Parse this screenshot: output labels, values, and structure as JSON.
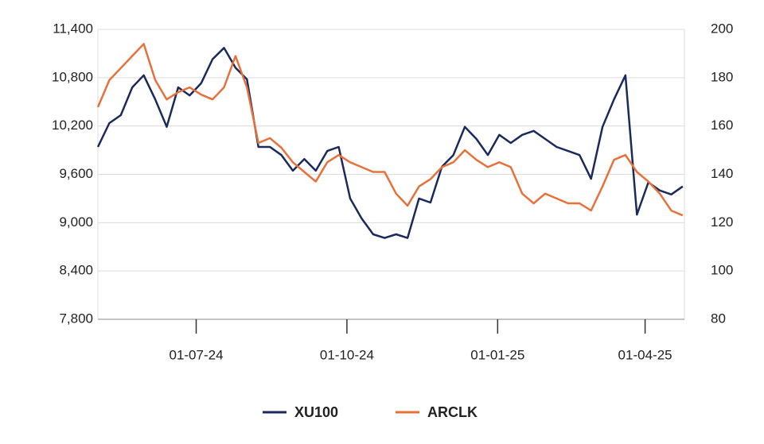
{
  "chart_data": {
    "type": "line",
    "x": [
      "2024-05-02",
      "2024-05-09",
      "2024-05-16",
      "2024-05-23",
      "2024-05-30",
      "2024-06-06",
      "2024-06-13",
      "2024-06-20",
      "2024-06-27",
      "2024-07-04",
      "2024-07-11",
      "2024-07-18",
      "2024-07-25",
      "2024-08-01",
      "2024-08-08",
      "2024-08-15",
      "2024-08-22",
      "2024-08-29",
      "2024-09-05",
      "2024-09-12",
      "2024-09-19",
      "2024-09-26",
      "2024-10-03",
      "2024-10-10",
      "2024-10-17",
      "2024-10-24",
      "2024-10-31",
      "2024-11-07",
      "2024-11-14",
      "2024-11-21",
      "2024-11-28",
      "2024-12-05",
      "2024-12-12",
      "2024-12-19",
      "2024-12-26",
      "2025-01-02",
      "2025-01-09",
      "2025-01-16",
      "2025-01-23",
      "2025-01-30",
      "2025-02-06",
      "2025-02-13",
      "2025-02-20",
      "2025-02-27",
      "2025-03-06",
      "2025-03-13",
      "2025-03-20",
      "2025-03-27",
      "2025-04-03",
      "2025-04-10",
      "2025-04-17",
      "2025-04-24"
    ],
    "series": [
      {
        "name": "XU100",
        "color": "#1b2a5c",
        "values": [
          9940,
          10236,
          10335,
          10680,
          10830,
          10530,
          10190,
          10680,
          10580,
          10730,
          11030,
          11170,
          10925,
          10780,
          9940,
          9940,
          9840,
          9645,
          9790,
          9645,
          9890,
          9940,
          9300,
          9053,
          8855,
          8810,
          8855,
          8810,
          9300,
          9250,
          9695,
          9840,
          10190,
          10040,
          9840,
          10090,
          9990,
          10090,
          10140,
          10040,
          9940,
          9890,
          9840,
          9545,
          10190,
          10530,
          10830,
          9100,
          9500,
          9400,
          9350,
          9450
        ]
      },
      {
        "name": "ARCLK",
        "color": "#e8703a",
        "axis": "y2",
        "values": [
          167.8,
          179,
          184,
          189,
          194,
          179,
          171,
          174,
          176,
          173,
          171,
          176,
          189,
          176,
          153,
          155,
          151,
          145,
          141,
          137,
          145,
          148,
          145,
          143,
          141,
          141,
          132,
          127,
          135,
          138,
          143,
          145,
          150,
          146,
          143,
          145,
          143,
          132,
          128,
          132,
          130,
          128,
          128,
          125,
          135,
          146,
          148,
          141,
          137,
          132,
          125,
          123
        ]
      }
    ],
    "xlim": [
      "2024-05-02",
      "2025-04-25"
    ],
    "xticks": [
      {
        "value": "2024-07-01",
        "label": "01-07-24"
      },
      {
        "value": "2024-10-01",
        "label": "01-10-24"
      },
      {
        "value": "2025-01-01",
        "label": "01-01-25"
      },
      {
        "value": "2025-04-01",
        "label": "01-04-25"
      }
    ],
    "ylim": [
      7800,
      11400
    ],
    "yticks": [
      {
        "value": 7800,
        "label": "7,800"
      },
      {
        "value": 8400,
        "label": "8,400"
      },
      {
        "value": 9000,
        "label": "9,000"
      },
      {
        "value": 9600,
        "label": "9,600"
      },
      {
        "value": 10200,
        "label": "10,200"
      },
      {
        "value": 10800,
        "label": "10,800"
      },
      {
        "value": 11400,
        "label": "11,400"
      }
    ],
    "y2lim": [
      80,
      200
    ],
    "y2ticks": [
      80,
      100,
      120,
      140,
      160,
      180,
      200
    ],
    "grid": true
  }
}
